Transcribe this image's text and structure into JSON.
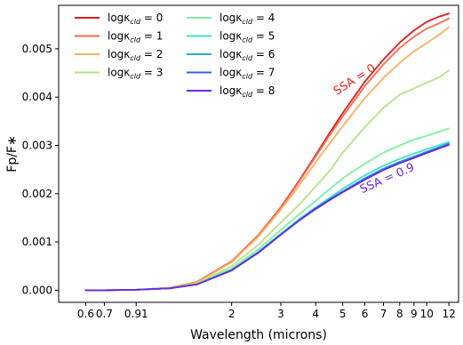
{
  "chart_data": {
    "type": "line",
    "xlabel": "Wavelength (microns)",
    "ylabel": "Fp/F∗",
    "xscale": "log",
    "xlim": [
      0.48,
      13.0
    ],
    "ylim": [
      -0.00025,
      0.0059
    ],
    "x_ticks": [
      0.6,
      0.7,
      0.91,
      2,
      3,
      4,
      5,
      6,
      7,
      8,
      9,
      10,
      12
    ],
    "x_tick_labels": [
      "0.6",
      "0.7",
      "0.91",
      "2",
      "3",
      "4",
      "5",
      "6",
      "7",
      "8",
      "9",
      "10",
      "12"
    ],
    "y_ticks": [
      0.0,
      0.001,
      0.002,
      0.003,
      0.004,
      0.005
    ],
    "y_tick_labels": [
      "0.000",
      "0.001",
      "0.002",
      "0.003",
      "0.004",
      "0.005"
    ],
    "grid": false,
    "legend_position": "top-left",
    "annotations": [
      {
        "text": "SSA = 0",
        "x": 5.6,
        "y": 0.0043,
        "color": "#e8211b",
        "rotation": -33
      },
      {
        "text": "SSA = 0.9",
        "x": 7.3,
        "y": 0.00225,
        "color": "#6a2ae0",
        "rotation": -24
      }
    ],
    "series": [
      {
        "name_prefix": "logκ",
        "name_sub": "cld",
        "name_suffix": " = 0",
        "color": "#e31a1c",
        "x": [
          0.6,
          0.7,
          0.91,
          1.2,
          1.5,
          2.0,
          2.5,
          3.0,
          3.5,
          4.0,
          4.5,
          5.0,
          6.0,
          7.0,
          8.0,
          9.0,
          10.0,
          11.0,
          12.0
        ],
        "y": [
          0.0,
          0.0,
          1e-05,
          5e-05,
          0.00017,
          0.0006,
          0.00115,
          0.00172,
          0.00228,
          0.0028,
          0.00327,
          0.00367,
          0.00432,
          0.00478,
          0.00513,
          0.00538,
          0.00556,
          0.00566,
          0.00573
        ]
      },
      {
        "name_prefix": "logκ",
        "name_sub": "cld",
        "name_suffix": " = 1",
        "color": "#fb6a4a",
        "x": [
          0.6,
          0.7,
          0.91,
          1.2,
          1.5,
          2.0,
          2.5,
          3.0,
          3.5,
          4.0,
          4.5,
          5.0,
          6.0,
          7.0,
          8.0,
          9.0,
          10.0,
          11.0,
          12.0
        ],
        "y": [
          0.0,
          0.0,
          1e-05,
          5e-05,
          0.00017,
          0.0006,
          0.00115,
          0.00171,
          0.00226,
          0.00277,
          0.00322,
          0.0036,
          0.00423,
          0.00468,
          0.00502,
          0.00525,
          0.00542,
          0.00552,
          0.00563
        ]
      },
      {
        "name_prefix": "logκ",
        "name_sub": "cld",
        "name_suffix": " = 2",
        "color": "#fdae61",
        "x": [
          0.6,
          0.7,
          0.91,
          1.2,
          1.5,
          2.0,
          2.5,
          3.0,
          3.5,
          4.0,
          4.5,
          5.0,
          6.0,
          7.0,
          8.0,
          9.0,
          10.0,
          11.0,
          12.0
        ],
        "y": [
          0.0,
          0.0,
          1e-05,
          5e-05,
          0.00016,
          0.00058,
          0.00112,
          0.00167,
          0.00218,
          0.00265,
          0.00305,
          0.0034,
          0.00398,
          0.0044,
          0.00471,
          0.00495,
          0.00512,
          0.00528,
          0.00545
        ]
      },
      {
        "name_prefix": "logκ",
        "name_sub": "cld",
        "name_suffix": " = 3",
        "color": "#b8e186",
        "x": [
          0.6,
          0.7,
          0.91,
          1.2,
          1.5,
          2.0,
          2.5,
          3.0,
          3.5,
          4.0,
          4.5,
          5.0,
          6.0,
          7.0,
          8.0,
          9.0,
          10.0,
          11.0,
          12.0
        ],
        "y": [
          0.0,
          0.0,
          1e-05,
          4e-05,
          0.00014,
          0.0005,
          0.00095,
          0.0014,
          0.00178,
          0.00215,
          0.00248,
          0.00285,
          0.00338,
          0.00378,
          0.00405,
          0.00418,
          0.0043,
          0.0044,
          0.00455
        ]
      },
      {
        "name_prefix": "logκ",
        "name_sub": "cld",
        "name_suffix": " = 4",
        "color": "#7ef0a0",
        "x": [
          0.6,
          0.7,
          0.91,
          1.2,
          1.5,
          2.0,
          2.5,
          3.0,
          3.5,
          4.0,
          4.5,
          5.0,
          6.0,
          7.0,
          8.0,
          9.0,
          10.0,
          11.0,
          12.0
        ],
        "y": [
          0.0,
          0.0,
          1e-05,
          4e-05,
          0.00013,
          0.00045,
          0.00085,
          0.00125,
          0.00158,
          0.00185,
          0.0021,
          0.00232,
          0.00262,
          0.00285,
          0.003,
          0.00312,
          0.0032,
          0.00328,
          0.00335
        ]
      },
      {
        "name_prefix": "logκ",
        "name_sub": "cld",
        "name_suffix": " = 5",
        "color": "#40e0d0",
        "x": [
          0.6,
          0.7,
          0.91,
          1.2,
          1.5,
          2.0,
          2.5,
          3.0,
          3.5,
          4.0,
          4.5,
          5.0,
          6.0,
          7.0,
          8.0,
          9.0,
          10.0,
          11.0,
          12.0
        ],
        "y": [
          0.0,
          0.0,
          1e-05,
          4e-05,
          0.00012,
          0.00042,
          0.0008,
          0.00117,
          0.00148,
          0.00172,
          0.00192,
          0.0021,
          0.00238,
          0.00258,
          0.00272,
          0.00283,
          0.00292,
          0.003,
          0.00307
        ]
      },
      {
        "name_prefix": "logκ",
        "name_sub": "cld",
        "name_suffix": " = 6",
        "color": "#29a8e0",
        "x": [
          0.6,
          0.7,
          0.91,
          1.2,
          1.5,
          2.0,
          2.5,
          3.0,
          3.5,
          4.0,
          4.5,
          5.0,
          6.0,
          7.0,
          8.0,
          9.0,
          10.0,
          11.0,
          12.0
        ],
        "y": [
          0.0,
          0.0,
          1e-05,
          4e-05,
          0.00012,
          0.00042,
          0.00079,
          0.00116,
          0.00146,
          0.0017,
          0.00189,
          0.00205,
          0.00232,
          0.00252,
          0.00266,
          0.00277,
          0.00287,
          0.00296,
          0.00304
        ]
      },
      {
        "name_prefix": "logκ",
        "name_sub": "cld",
        "name_suffix": " = 7",
        "color": "#3b5fe8",
        "x": [
          0.6,
          0.7,
          0.91,
          1.2,
          1.5,
          2.0,
          2.5,
          3.0,
          3.5,
          4.0,
          4.5,
          5.0,
          6.0,
          7.0,
          8.0,
          9.0,
          10.0,
          11.0,
          12.0
        ],
        "y": [
          0.0,
          0.0,
          1e-05,
          4e-05,
          0.00012,
          0.00041,
          0.00079,
          0.00115,
          0.00145,
          0.00169,
          0.00188,
          0.00204,
          0.0023,
          0.0025,
          0.00264,
          0.00275,
          0.00285,
          0.00294,
          0.00302
        ]
      },
      {
        "name_prefix": "logκ",
        "name_sub": "cld",
        "name_suffix": " = 8",
        "color": "#6a2ae0",
        "x": [
          0.6,
          0.7,
          0.91,
          1.2,
          1.5,
          2.0,
          2.5,
          3.0,
          3.5,
          4.0,
          4.5,
          5.0,
          6.0,
          7.0,
          8.0,
          9.0,
          10.0,
          11.0,
          12.0
        ],
        "y": [
          0.0,
          0.0,
          1e-05,
          4e-05,
          0.00012,
          0.00041,
          0.00078,
          0.00115,
          0.00145,
          0.00168,
          0.00187,
          0.00203,
          0.00229,
          0.00249,
          0.00263,
          0.00274,
          0.00284,
          0.00293,
          0.00301
        ]
      }
    ]
  }
}
